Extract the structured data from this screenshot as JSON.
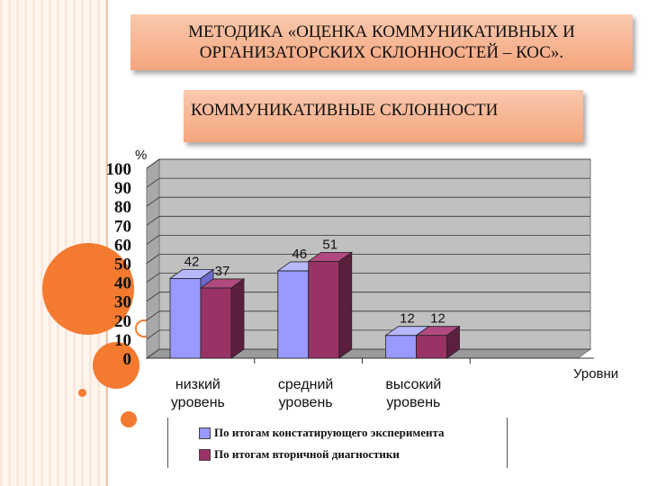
{
  "slide": {
    "title": "МЕТОДИКА «ОЦЕНКА КОММУНИКАТИВНЫХ И ОРГАНИЗАТОРСКИХ СКЛОННОСТЕЙ – КОС».",
    "subtitle": "КОММУНИКАТИВНЫЕ СКЛОННОСТИ"
  },
  "colors": {
    "series1": "#9999ff",
    "series2": "#993366",
    "accent_orange": "#f47a30",
    "title_box": "#f7b08c"
  },
  "chart_data": {
    "type": "bar",
    "ylabel": "%",
    "xlabel": "Уровни",
    "ylim": [
      0,
      100
    ],
    "yticks": [
      0,
      10,
      20,
      30,
      40,
      50,
      60,
      70,
      80,
      90,
      100
    ],
    "categories": [
      "низкий уровень",
      "средний уровень",
      "высокий уровень"
    ],
    "series": [
      {
        "name": "По итогам констатирующего эксперимента",
        "values": [
          42,
          46,
          12
        ]
      },
      {
        "name": "По итогам вторичной диагностики",
        "values": [
          37,
          51,
          12
        ]
      }
    ],
    "grid": true,
    "legend_position": "bottom"
  }
}
